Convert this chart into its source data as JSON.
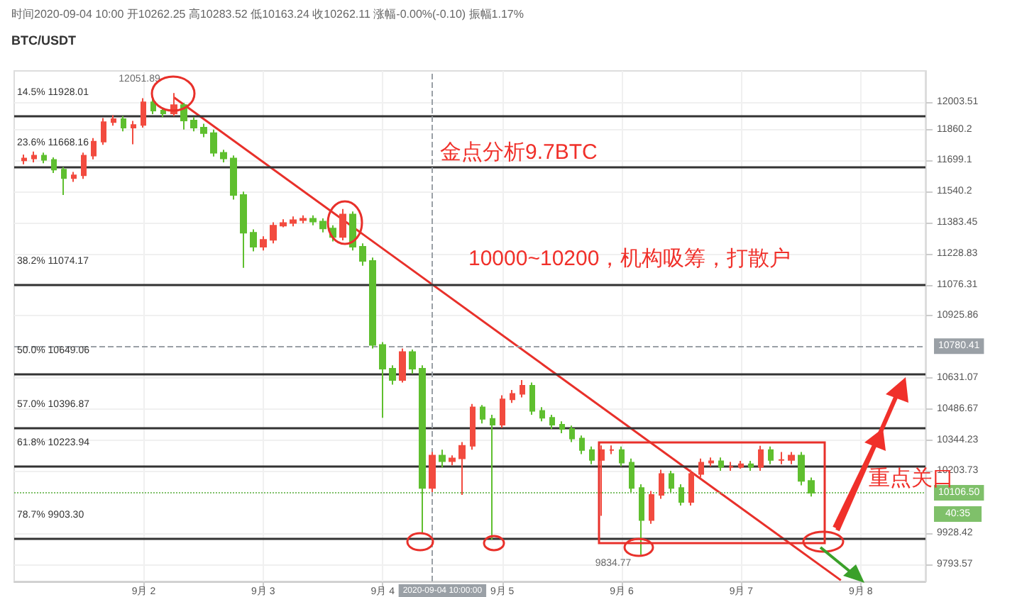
{
  "chart_data": {
    "type": "candlestick",
    "title": "BTC/USDT",
    "annotations": [
      "时间2020-09-04 10:00 开10262.25 高10283.52 低10163.24 收10262.11 涨幅-0.00%(-0.10) 振幅1.17%",
      "金点分析9.7BTC",
      "10000~10200，机构吸筹，打散户",
      "重点关口",
      "40:35",
      {
        "text": "12051.89",
        "x": "2020-09-02T06:00",
        "y": 12051.89
      },
      {
        "text": "9834.77",
        "x": "2020-09-06T04:00",
        "y": 9834.77
      }
    ],
    "x": [
      "2020-09-01T00:00",
      "2020-09-01T02:00",
      "2020-09-01T04:00",
      "2020-09-01T06:00",
      "2020-09-01T08:00",
      "2020-09-01T10:00",
      "2020-09-01T12:00",
      "2020-09-01T14:00",
      "2020-09-01T16:00",
      "2020-09-01T18:00",
      "2020-09-01T20:00",
      "2020-09-01T22:00",
      "2020-09-02T00:00",
      "2020-09-02T02:00",
      "2020-09-02T04:00",
      "2020-09-02T06:00",
      "2020-09-02T08:00",
      "2020-09-02T10:00",
      "2020-09-02T12:00",
      "2020-09-02T14:00",
      "2020-09-02T16:00",
      "2020-09-02T18:00",
      "2020-09-02T20:00",
      "2020-09-02T22:00",
      "2020-09-03T00:00",
      "2020-09-03T02:00",
      "2020-09-03T04:00",
      "2020-09-03T06:00",
      "2020-09-03T08:00",
      "2020-09-03T10:00",
      "2020-09-03T12:00",
      "2020-09-03T14:00",
      "2020-09-03T16:00",
      "2020-09-03T18:00",
      "2020-09-03T20:00",
      "2020-09-03T22:00",
      "2020-09-04T00:00",
      "2020-09-04T02:00",
      "2020-09-04T04:00",
      "2020-09-04T06:00",
      "2020-09-04T08:00",
      "2020-09-04T10:00",
      "2020-09-04T12:00",
      "2020-09-04T14:00",
      "2020-09-04T16:00",
      "2020-09-04T18:00",
      "2020-09-04T20:00",
      "2020-09-04T22:00",
      "2020-09-05T00:00",
      "2020-09-05T02:00",
      "2020-09-05T04:00",
      "2020-09-05T06:00",
      "2020-09-05T08:00",
      "2020-09-05T10:00",
      "2020-09-05T12:00",
      "2020-09-05T14:00",
      "2020-09-05T16:00",
      "2020-09-05T18:00",
      "2020-09-05T20:00",
      "2020-09-05T22:00",
      "2020-09-06T00:00",
      "2020-09-06T02:00",
      "2020-09-06T04:00",
      "2020-09-06T06:00",
      "2020-09-06T08:00",
      "2020-09-06T10:00",
      "2020-09-06T12:00",
      "2020-09-06T14:00",
      "2020-09-06T16:00",
      "2020-09-06T18:00",
      "2020-09-06T20:00",
      "2020-09-06T22:00",
      "2020-09-07T00:00",
      "2020-09-07T02:00",
      "2020-09-07T04:00",
      "2020-09-07T06:00",
      "2020-09-07T08:00",
      "2020-09-07T10:00",
      "2020-09-07T12:00",
      "2020-09-07T14:00"
    ],
    "ohlc": [
      [
        11700,
        11730,
        11680,
        11710
      ],
      [
        11710,
        11745,
        11690,
        11724
      ],
      [
        11724,
        11740,
        11685,
        11702
      ],
      [
        11702,
        11715,
        11635,
        11652
      ],
      [
        11652,
        11665,
        11523,
        11609
      ],
      [
        11609,
        11640,
        11590,
        11623
      ],
      [
        11623,
        11740,
        11605,
        11724
      ],
      [
        11724,
        11815,
        11705,
        11797
      ],
      [
        11797,
        11920,
        11780,
        11899
      ],
      [
        11899,
        11935,
        11880,
        11914
      ],
      [
        11914,
        11930,
        11850,
        11870
      ],
      [
        11870,
        11905,
        11783,
        11884
      ],
      [
        11884,
        12025,
        11870,
        12003
      ],
      [
        12003,
        12020,
        11940,
        11959
      ],
      [
        11959,
        11975,
        11925,
        11944
      ],
      [
        11944,
        12051.89,
        11930,
        11988
      ],
      [
        11988,
        12000,
        11860,
        11907
      ],
      [
        11907,
        11925,
        11850,
        11870
      ],
      [
        11870,
        11890,
        11820,
        11841
      ],
      [
        11841,
        11860,
        11720,
        11739
      ],
      [
        11739,
        11755,
        11690,
        11710
      ],
      [
        11710,
        11725,
        11500,
        11523
      ],
      [
        11523,
        11540,
        11159,
        11333
      ],
      [
        11333,
        11350,
        11240,
        11263
      ],
      [
        11263,
        11315,
        11245,
        11298
      ],
      [
        11298,
        11385,
        11280,
        11368
      ],
      [
        11368,
        11400,
        11360,
        11382
      ],
      [
        11382,
        11415,
        11365,
        11396
      ],
      [
        11396,
        11420,
        11380,
        11403
      ],
      [
        11403,
        11420,
        11370,
        11389
      ],
      [
        11389,
        11405,
        11335,
        11354
      ],
      [
        11354,
        11370,
        11290,
        11312
      ],
      [
        11312,
        11452,
        11295,
        11424
      ],
      [
        11424,
        11440,
        11245,
        11263
      ],
      [
        11263,
        11280,
        11170,
        11193
      ],
      [
        11193,
        11210,
        10770,
        10787
      ],
      [
        10787,
        10800,
        10446,
        10674
      ],
      [
        10674,
        10690,
        10600,
        10621
      ],
      [
        10621,
        10770,
        10610,
        10753
      ],
      [
        10753,
        10765,
        10650,
        10674
      ],
      [
        10674,
        10690,
        9928,
        10128
      ],
      [
        10128,
        10290,
        10110,
        10274
      ],
      [
        10274,
        10300,
        10220,
        10248
      ],
      [
        10248,
        10275,
        10230,
        10261
      ],
      [
        10261,
        10335,
        10097,
        10318
      ],
      [
        10318,
        10510,
        10300,
        10494
      ],
      [
        10494,
        10505,
        10420,
        10441
      ],
      [
        10441,
        10460,
        9900,
        10414
      ],
      [
        10414,
        10550,
        10400,
        10531
      ],
      [
        10531,
        10575,
        10515,
        10557
      ],
      [
        10557,
        10621,
        10540,
        10595
      ],
      [
        10595,
        10610,
        10460,
        10478
      ],
      [
        10478,
        10495,
        10430,
        10446
      ],
      [
        10446,
        10460,
        10395,
        10414
      ],
      [
        10414,
        10430,
        10375,
        10395
      ],
      [
        10395,
        10410,
        10335,
        10351
      ],
      [
        10351,
        10365,
        10280,
        10299
      ],
      [
        10299,
        10315,
        10235,
        10254
      ],
      [
        10254,
        10320,
        10005,
        10299
      ],
      [
        10299,
        10320,
        10280,
        10299
      ],
      [
        10299,
        10315,
        10225,
        10242
      ],
      [
        10242,
        10260,
        10110,
        10128
      ],
      [
        10128,
        10145,
        9834.77,
        9986
      ],
      [
        9986,
        10115,
        9970,
        10097
      ],
      [
        10097,
        10210,
        10080,
        10191
      ],
      [
        10191,
        10205,
        10110,
        10128
      ],
      [
        10128,
        10145,
        10050,
        10066
      ],
      [
        10066,
        10210,
        10050,
        10191
      ],
      [
        10191,
        10260,
        10175,
        10242
      ],
      [
        10242,
        10265,
        10225,
        10248
      ],
      [
        10248,
        10265,
        10205,
        10223
      ],
      [
        10223,
        10245,
        10205,
        10223
      ],
      [
        10223,
        10250,
        10215,
        10235
      ],
      [
        10235,
        10250,
        10205,
        10223
      ],
      [
        10223,
        10318,
        10205,
        10299
      ],
      [
        10299,
        10315,
        10235,
        10254
      ],
      [
        10254,
        10290,
        10235,
        10254
      ],
      [
        10254,
        10290,
        10235,
        10274
      ],
      [
        10274,
        10290,
        10140,
        10160
      ],
      [
        10160,
        10175,
        10090,
        10106.5
      ]
    ],
    "series": [
      {
        "type": "line",
        "color": "#e8302a",
        "x": [
          "2020-09-02T06:00",
          "2020-09-07T20:00"
        ],
        "values": [
          12030,
          9725
        ]
      }
    ],
    "log": "y",
    "grid": true,
    "xlim": [
      "2020-08-31T22:00",
      "2020-09-08T13:00"
    ],
    "xticks": [
      {
        "value": "2020-09-02",
        "label": "9月 2"
      },
      {
        "value": "2020-09-03",
        "label": "9月 3"
      },
      {
        "value": "2020-09-04",
        "label": "9月 4"
      },
      {
        "value": "2020-09-05",
        "label": "9月 5"
      },
      {
        "value": "2020-09-06",
        "label": "9月 6"
      },
      {
        "value": "2020-09-07",
        "label": "9月 7"
      },
      {
        "value": "2020-09-08",
        "label": "9月 8"
      }
    ],
    "ylim": [
      9720,
      12170
    ],
    "yticks": [
      9793.57,
      9928.42,
      10203.73,
      10344.23,
      10486.67,
      10631.07,
      10925.86,
      11076.31,
      11228.83,
      11383.45,
      11540.2,
      11699.1,
      11860.2,
      12003.51
    ],
    "ref_lines": [
      {
        "axis": "y",
        "value": 11928.01,
        "label": "14.5% 11928.01",
        "color": "#333333"
      },
      {
        "axis": "y",
        "value": 11668.16,
        "label": "23.6% 11668.16",
        "color": "#333333"
      },
      {
        "axis": "y",
        "value": 11074.17,
        "label": "38.2% 11074.17",
        "color": "#333333"
      },
      {
        "axis": "y",
        "value": 10649.06,
        "label": "50.0% 10649.06",
        "color": "#333333"
      },
      {
        "axis": "y",
        "value": 10396.87,
        "label": "57.0% 10396.87",
        "color": "#333333"
      },
      {
        "axis": "y",
        "value": 10223.94,
        "label": "61.8% 10223.94",
        "color": "#333333"
      },
      {
        "axis": "y",
        "value": 9903.3,
        "label": "78.7% 9903.30",
        "color": "#333333"
      },
      {
        "axis": "y",
        "value": 10780.41,
        "label": "10780.41",
        "color": "#9aa0a6",
        "line_style": "dashed"
      },
      {
        "axis": "y",
        "value": 10106.5,
        "label": "10106.50",
        "color": "#7fc06a",
        "line_style": "none"
      },
      {
        "axis": "x",
        "value": "2020-09-04T10:00",
        "label": "2020-09-04 10:00:00",
        "color": "#9aa0a6",
        "line_style": "dashed"
      }
    ]
  }
}
